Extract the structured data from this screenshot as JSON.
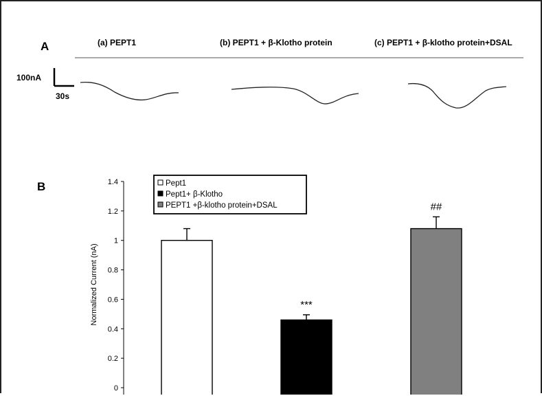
{
  "panel_a": {
    "label": "A",
    "traces": [
      {
        "title": "(a) PEPT1"
      },
      {
        "title": "(b) PEPT1 + β-Klotho protein"
      },
      {
        "title": "(c) PEPT1 + β-klotho protein+DSAL"
      }
    ],
    "scale_current": "100nA",
    "scale_time": "30s"
  },
  "panel_b": {
    "label": "B"
  },
  "chart_data": {
    "type": "bar",
    "categories": [
      "Pept1",
      "Pept1+ β-Klotho",
      "PEPT1 +β-klotho protein+DSAL"
    ],
    "values": [
      1.0,
      0.46,
      1.08
    ],
    "errors": [
      0.08,
      0.035,
      0.08
    ],
    "annotations": [
      "",
      "***",
      "##"
    ],
    "colors": [
      "#ffffff",
      "#000000",
      "#808080"
    ],
    "ylabel": "Normalized Current (nA)",
    "xlabel": "",
    "ylim": [
      0,
      1.4
    ],
    "yticks": [
      "0",
      "0.2",
      "0.4",
      "0.6",
      "0.8",
      "1",
      "1.2",
      "1.4"
    ],
    "legend": {
      "position": "top-left",
      "entries": [
        "Pept1",
        "Pept1+ β-Klotho",
        "PEPT1 +β-klotho protein+DSAL"
      ]
    },
    "grid": false
  }
}
